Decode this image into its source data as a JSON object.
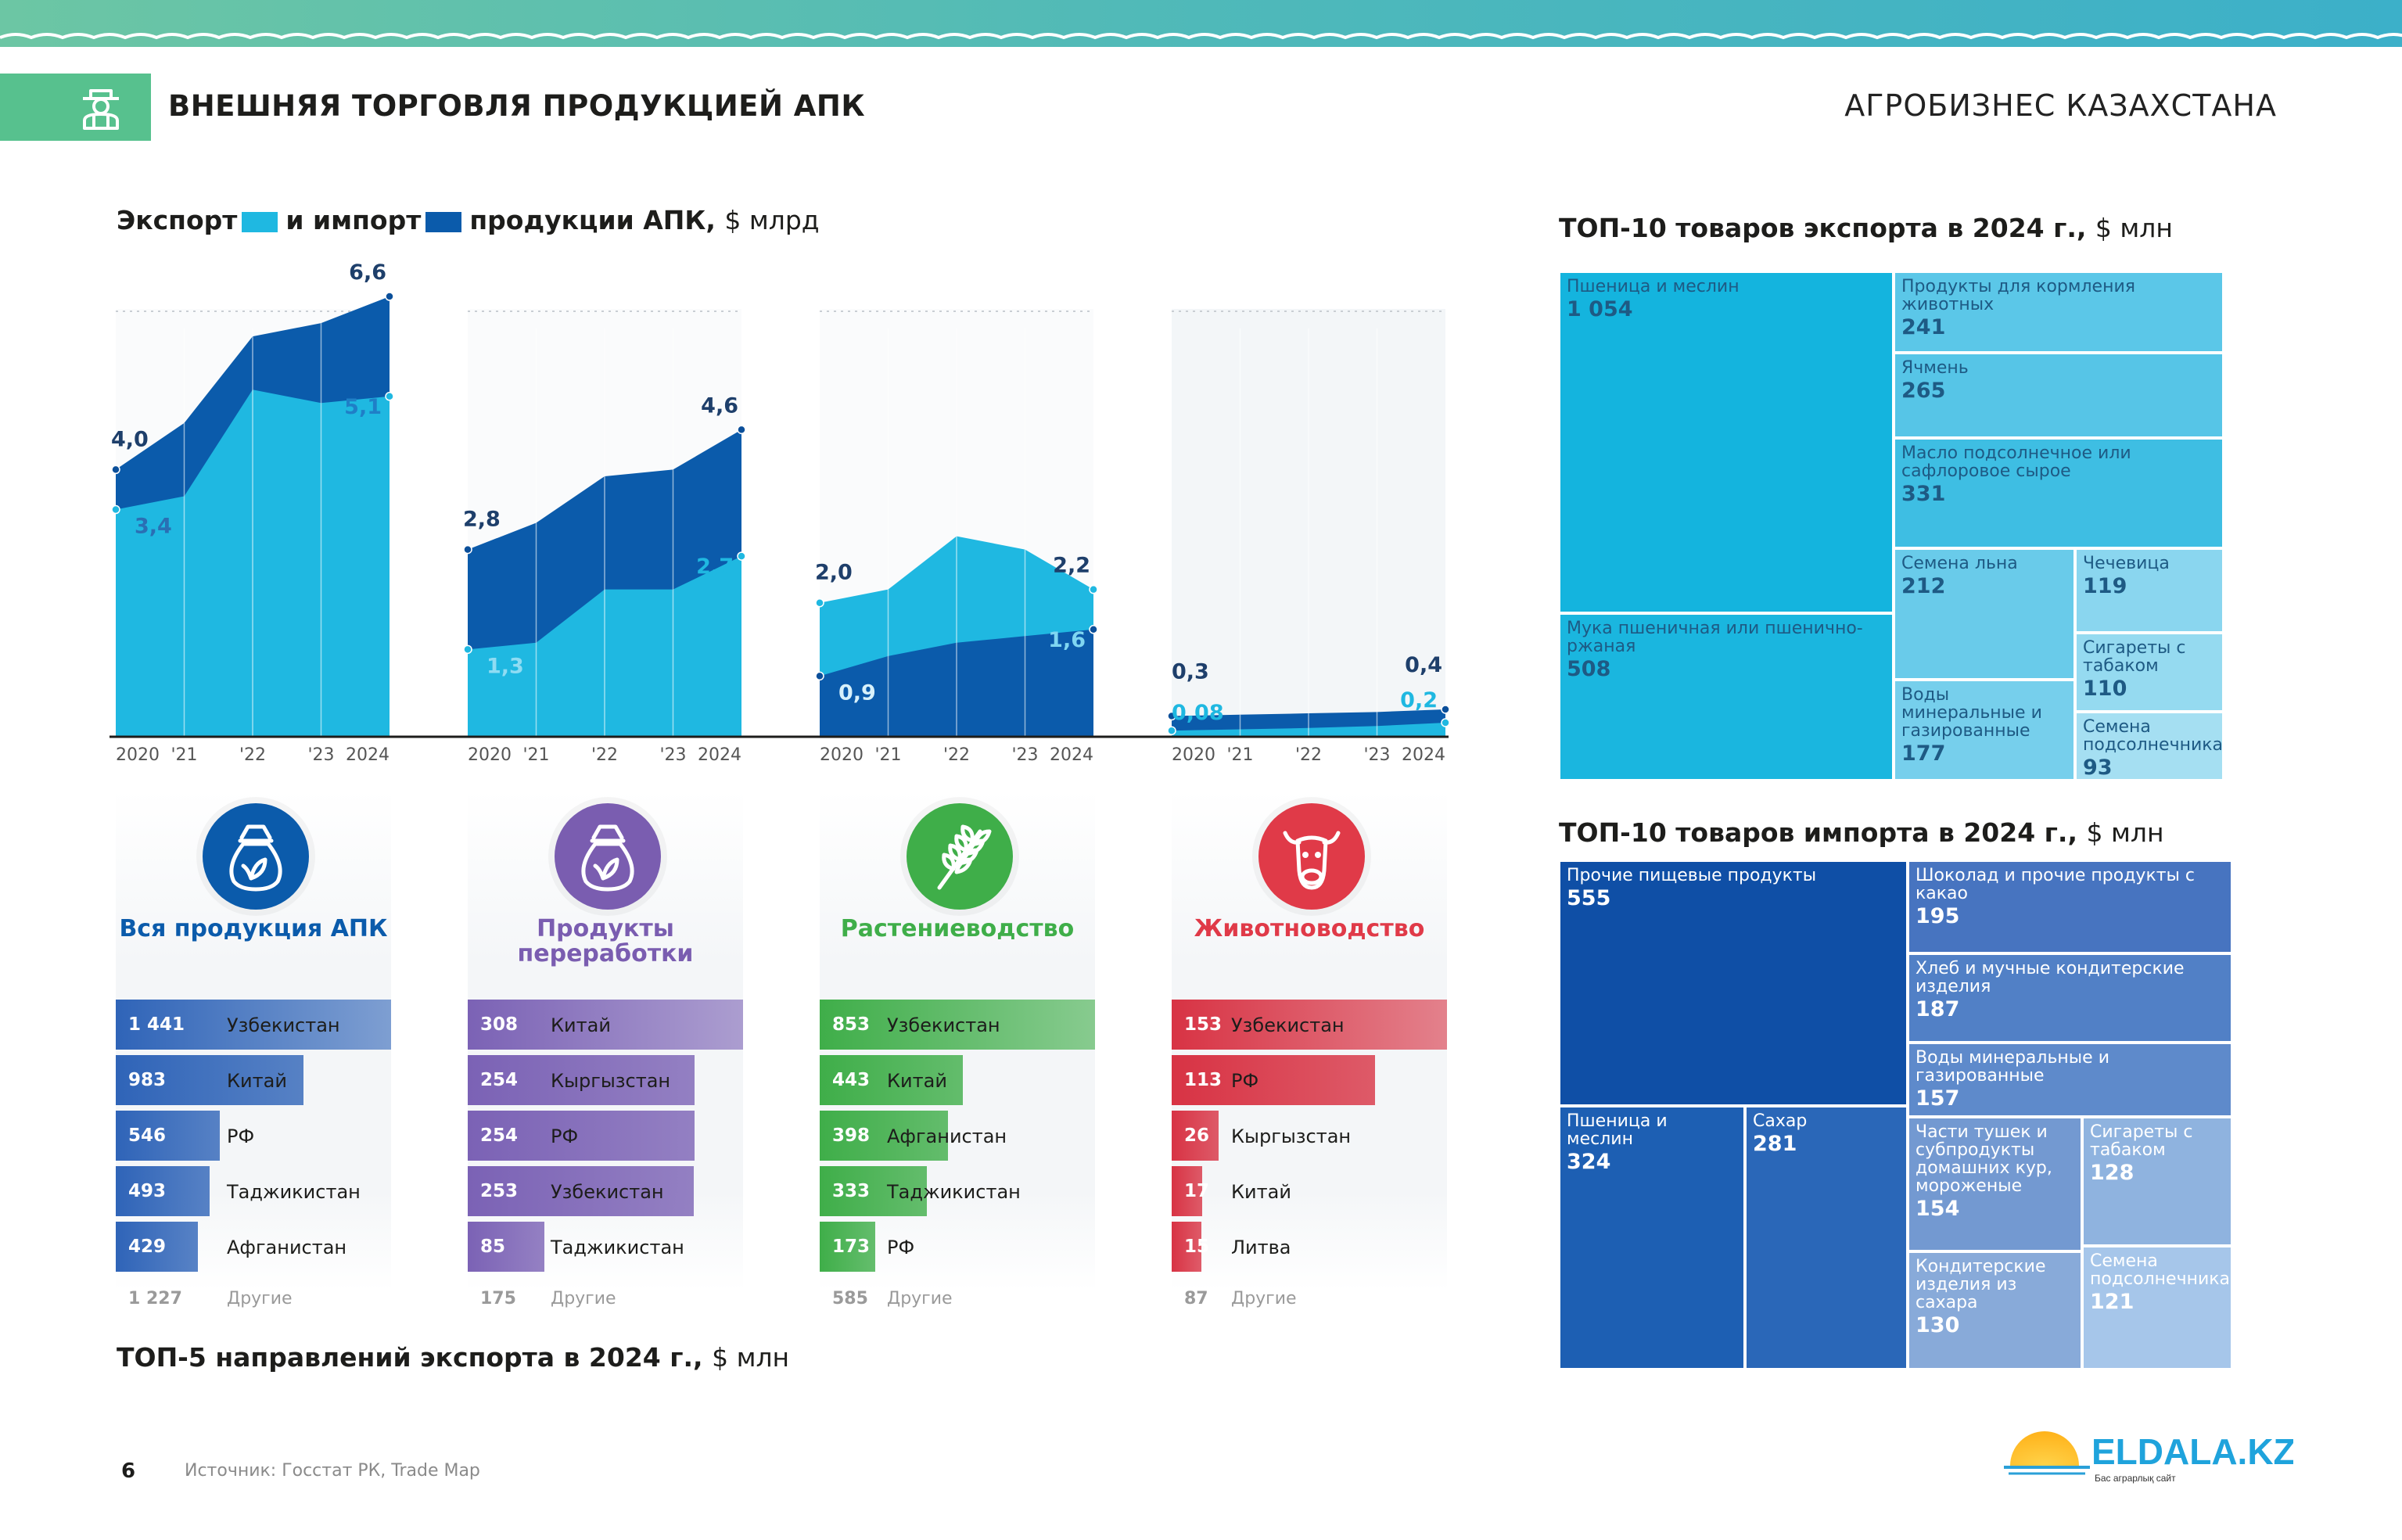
{
  "header": {
    "title": "ВНЕШНЯЯ ТОРГОВЛЯ ПРОДУКЦИЕЙ АПК",
    "brand": "АГРОБИЗНЕС КАЗАХСТАНА",
    "accent_color": "#57c18e"
  },
  "area_section": {
    "title_part1": "Экспорт",
    "title_part2": "и импорт",
    "title_part3": "продукции АПК,",
    "title_unit": "$ млрд",
    "export_color": "#1fb8e1",
    "import_color": "#0b5bab"
  },
  "chart_data": [
    {
      "type": "area",
      "name": "Вся продукция АПК",
      "x": [
        "2020",
        "'21",
        "'22",
        "'23",
        "2024"
      ],
      "series": [
        {
          "name": "Экспорт",
          "values": [
            3.4,
            3.6,
            5.2,
            5.0,
            5.1
          ],
          "color": "#1fb8e1"
        },
        {
          "name": "Импорт",
          "values": [
            4.0,
            4.7,
            6.0,
            6.2,
            6.6
          ],
          "color": "#0b5bab"
        }
      ],
      "labels": {
        "start_top": "4,0",
        "start_bottom": "3,4",
        "end_top": "6,6",
        "end_bottom": "5,1"
      },
      "front": "import",
      "ylim": [
        0,
        7
      ]
    },
    {
      "type": "area",
      "name": "Продукты переработки",
      "x": [
        "2020",
        "'21",
        "'22",
        "'23",
        "2024"
      ],
      "series": [
        {
          "name": "Экспорт",
          "values": [
            1.3,
            1.4,
            2.2,
            2.2,
            2.7
          ],
          "color": "#1fb8e1"
        },
        {
          "name": "Импорт",
          "values": [
            2.8,
            3.2,
            3.9,
            4.0,
            4.6
          ],
          "color": "#0b5bab"
        }
      ],
      "labels": {
        "start_top": "2,8",
        "start_bottom": "1,3",
        "end_top": "4,6",
        "end_bottom": "2,7"
      },
      "front": "import",
      "ylim": [
        0,
        7
      ]
    },
    {
      "type": "area",
      "name": "Растениеводство",
      "x": [
        "2020",
        "'21",
        "'22",
        "'23",
        "2024"
      ],
      "series": [
        {
          "name": "Экспорт",
          "values": [
            2.0,
            2.2,
            3.0,
            2.8,
            2.2
          ],
          "color": "#1fb8e1"
        },
        {
          "name": "Импорт",
          "values": [
            0.9,
            1.2,
            1.4,
            1.5,
            1.6
          ],
          "color": "#0b5bab"
        }
      ],
      "labels": {
        "start_top": "2,0",
        "start_bottom": "0,9",
        "end_top": "2,2",
        "end_bottom": "1,6"
      },
      "front": "export",
      "ylim": [
        0,
        7
      ]
    },
    {
      "type": "area",
      "name": "Животноводство",
      "x": [
        "2020",
        "'21",
        "'22",
        "'23",
        "2024"
      ],
      "series": [
        {
          "name": "Экспорт",
          "values": [
            0.08,
            0.1,
            0.12,
            0.15,
            0.2
          ],
          "color": "#1fb8e1"
        },
        {
          "name": "Импорт",
          "values": [
            0.3,
            0.32,
            0.34,
            0.36,
            0.4
          ],
          "color": "#0b5bab"
        }
      ],
      "labels": {
        "start_top": "0,3",
        "start_bottom": "0,08",
        "end_top": "0,4",
        "end_bottom": "0,2"
      },
      "front": "import",
      "ylim": [
        0,
        7
      ]
    }
  ],
  "categories": [
    {
      "title": "Вся продукция АПК",
      "title_color": "#0b5bab",
      "icon_name": "grain-sack-icon",
      "bar_color": "#2f64b8",
      "rows": [
        {
          "value": "1 441",
          "country": "Узбекистан",
          "amount": 1441
        },
        {
          "value": "983",
          "country": "Китай",
          "amount": 983
        },
        {
          "value": "546",
          "country": "РФ",
          "amount": 546
        },
        {
          "value": "493",
          "country": "Таджикистан",
          "amount": 493
        },
        {
          "value": "429",
          "country": "Афганистан",
          "amount": 429
        }
      ],
      "others_value": "1 227",
      "others_label": "Другие"
    },
    {
      "title": "Продукты переработки",
      "title_color": "#7a5db0",
      "icon_name": "processed-sack-icon",
      "bar_color": "#7b62b5",
      "rows": [
        {
          "value": "308",
          "country": "Китай",
          "amount": 308
        },
        {
          "value": "254",
          "country": "Кыргызстан",
          "amount": 254
        },
        {
          "value": "254",
          "country": "РФ",
          "amount": 254
        },
        {
          "value": "253",
          "country": "Узбекистан",
          "amount": 253
        },
        {
          "value": "85",
          "country": "Таджикистан",
          "amount": 85
        }
      ],
      "others_value": "175",
      "others_label": "Другие"
    },
    {
      "title": "Растениеводство",
      "title_color": "#3fae49",
      "icon_name": "wheat-icon",
      "bar_color": "#3fae49",
      "rows": [
        {
          "value": "853",
          "country": "Узбекистан",
          "amount": 853
        },
        {
          "value": "443",
          "country": "Китай",
          "amount": 443
        },
        {
          "value": "398",
          "country": "Афганистан",
          "amount": 398
        },
        {
          "value": "333",
          "country": "Таджикистан",
          "amount": 333
        },
        {
          "value": "173",
          "country": "РФ",
          "amount": 173
        }
      ],
      "others_value": "585",
      "others_label": "Другие"
    },
    {
      "title": "Животноводство",
      "title_color": "#e03a48",
      "icon_name": "cow-icon",
      "bar_color": "#d83344",
      "rows": [
        {
          "value": "153",
          "country": "Узбекистан",
          "amount": 153
        },
        {
          "value": "113",
          "country": "РФ",
          "amount": 113
        },
        {
          "value": "26",
          "country": "Кыргызстан",
          "amount": 26
        },
        {
          "value": "17",
          "country": "Китай",
          "amount": 17
        },
        {
          "value": "15",
          "country": "Литва",
          "amount": 15
        }
      ],
      "others_value": "87",
      "others_label": "Другие"
    }
  ],
  "bars_section": {
    "title": "ТОП-5 направлений экспорта в 2024 г.,",
    "unit": "$ млн"
  },
  "export_treemap": {
    "title": "ТОП-10 товаров экспорта в 2024 г.,",
    "unit": "$ млн",
    "items": [
      {
        "label": "Пшеница и меслин",
        "value": "1 054",
        "color": "#14b4de",
        "dark": true
      },
      {
        "label": "Мука пшеничная или пшенично-ржаная",
        "value": "508",
        "color": "#1ab6df",
        "dark": true
      },
      {
        "label": "Продукты для кормления животных",
        "value": "241",
        "color": "#5bc7e8",
        "dark": true
      },
      {
        "label": "Ячмень",
        "value": "265",
        "color": "#56c5e7",
        "dark": true
      },
      {
        "label": "Масло подсолнечное или сафлоровое сырое",
        "value": "331",
        "color": "#3ebee3",
        "dark": true
      },
      {
        "label": "Семена льна",
        "value": "212",
        "color": "#69cbea",
        "dark": true
      },
      {
        "label": "Воды минеральные и газированные",
        "value": "177",
        "color": "#76cfec",
        "dark": true
      },
      {
        "label": "Чечевица",
        "value": "119",
        "color": "#8ad6ef",
        "dark": true
      },
      {
        "label": "Сигареты с табаком",
        "value": "110",
        "color": "#95daf0",
        "dark": true
      },
      {
        "label": "Семена подсолнечника",
        "value": "93",
        "color": "#a5dff2",
        "dark": true
      }
    ]
  },
  "import_treemap": {
    "title": "ТОП-10 товаров импорта в 2024 г.,",
    "unit": "$ млн",
    "items": [
      {
        "label": "Прочие пищевые продукты",
        "value": "555",
        "color": "#0f4fa6"
      },
      {
        "label": "Пшеница и меслин",
        "value": "324",
        "color": "#1d5fb3"
      },
      {
        "label": "Сахар",
        "value": "281",
        "color": "#2a67b8"
      },
      {
        "label": "Шоколад и прочие продукты с какао",
        "value": "195",
        "color": "#4774c0"
      },
      {
        "label": "Хлеб и мучные кондитерские изделия",
        "value": "187",
        "color": "#5180c6"
      },
      {
        "label": "Воды минеральные и газированные",
        "value": "157",
        "color": "#5e8acb"
      },
      {
        "label": "Части тушек и субпродукты домашних кур, мороженые",
        "value": "154",
        "color": "#7399d1"
      },
      {
        "label": "Кондитерские изделия из сахара",
        "value": "130",
        "color": "#88aad9"
      },
      {
        "label": "Сигареты с табаком",
        "value": "128",
        "color": "#8fb3df"
      },
      {
        "label": "Семена подсолнечника",
        "value": "121",
        "color": "#a6c6ea"
      }
    ]
  },
  "footer": {
    "page_number": "6",
    "source": "Источник: Госстат РК, Trade Map",
    "logo_text": "ELDALA.KZ",
    "logo_tagline": "Бас аграрлық сайт"
  }
}
